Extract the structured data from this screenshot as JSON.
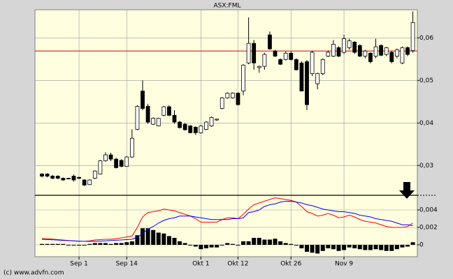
{
  "footer": "(c) www.advfn.com",
  "chart_data": [
    {
      "type": "candlestick",
      "title": "ASX:FML",
      "categories": [
        null,
        null,
        null,
        null,
        null,
        null,
        null,
        "Sep 1",
        null,
        null,
        null,
        null,
        null,
        null,
        null,
        null,
        "Sep 14",
        null,
        null,
        null,
        null,
        null,
        null,
        null,
        null,
        null,
        null,
        null,
        null,
        null,
        "Okt 1",
        null,
        null,
        null,
        null,
        null,
        null,
        "Okt 12",
        null,
        null,
        null,
        null,
        null,
        null,
        null,
        null,
        null,
        "Okt 26",
        null,
        null,
        null,
        null,
        null,
        null,
        null,
        null,
        null,
        "Nov 9",
        null,
        null,
        null,
        null,
        null,
        null,
        null,
        null,
        null,
        null,
        null,
        null,
        null
      ],
      "open": [
        0.028,
        0.028,
        0.0275,
        0.0275,
        0.027,
        0.027,
        0.0275,
        0.0272,
        0.0266,
        0.0255,
        0.027,
        0.028,
        0.0311,
        0.0325,
        0.0315,
        0.0312,
        0.0298,
        0.032,
        0.0385,
        0.0475,
        0.0439,
        0.0397,
        0.0393,
        0.0418,
        0.0438,
        0.0418,
        0.0402,
        0.0397,
        0.0393,
        0.039,
        0.0377,
        0.0385,
        0.0393,
        0.0407,
        0.0434,
        0.0459,
        0.0459,
        0.047,
        0.0475,
        0.0541,
        0.0587,
        0.053,
        0.0533,
        0.0607,
        0.0569,
        0.0549,
        0.0549,
        0.0564,
        0.0549,
        0.0541,
        0.0544,
        0.0516,
        0.0492,
        0.0516,
        0.0557,
        0.0557,
        0.0577,
        0.0566,
        0.0577,
        0.059,
        0.0582,
        0.0557,
        0.0564,
        0.0557,
        0.0582,
        0.0561,
        0.0566,
        0.0557,
        0.0541,
        0.0577,
        0.057
      ],
      "high": [
        0.0282,
        0.0282,
        0.0278,
        0.0277,
        0.0272,
        0.0271,
        0.0279,
        0.0274,
        0.0268,
        0.0268,
        0.0289,
        0.0313,
        0.0331,
        0.033,
        0.0318,
        0.0315,
        0.0322,
        0.0385,
        0.0442,
        0.05,
        0.0445,
        0.0413,
        0.0412,
        0.044,
        0.0442,
        0.043,
        0.0405,
        0.04,
        0.0395,
        0.0392,
        0.0395,
        0.0404,
        0.0415,
        0.041,
        0.0461,
        0.0472,
        0.0472,
        0.0472,
        0.0538,
        0.0648,
        0.0595,
        0.0535,
        0.0565,
        0.0615,
        0.0572,
        0.0552,
        0.0568,
        0.0568,
        0.0552,
        0.0545,
        0.0548,
        0.057,
        0.0518,
        0.0552,
        0.057,
        0.0595,
        0.058,
        0.0607,
        0.0598,
        0.0592,
        0.0585,
        0.0572,
        0.0566,
        0.0598,
        0.0585,
        0.0579,
        0.0569,
        0.0575,
        0.058,
        0.058,
        0.0662
      ],
      "low": [
        0.0272,
        0.0272,
        0.0268,
        0.0268,
        0.0264,
        0.0268,
        0.0262,
        0.0268,
        0.0252,
        0.0254,
        0.0268,
        0.0279,
        0.0309,
        0.031,
        0.0293,
        0.0296,
        0.0297,
        0.0318,
        0.0383,
        0.043,
        0.0398,
        0.0395,
        0.0392,
        0.0416,
        0.0416,
        0.0398,
        0.0387,
        0.0382,
        0.0376,
        0.0372,
        0.0375,
        0.0383,
        0.0391,
        0.0405,
        0.0432,
        0.0457,
        0.0457,
        0.0441,
        0.0465,
        0.0538,
        0.0525,
        0.0518,
        0.0525,
        0.0572,
        0.0555,
        0.0536,
        0.0547,
        0.0547,
        0.0523,
        0.0475,
        0.043,
        0.051,
        0.0479,
        0.0512,
        0.0555,
        0.0555,
        0.0555,
        0.0562,
        0.0572,
        0.0562,
        0.0555,
        0.0552,
        0.054,
        0.0552,
        0.0557,
        0.0557,
        0.054,
        0.0552,
        0.0538,
        0.0557,
        0.0565
      ],
      "close": [
        0.0275,
        0.0275,
        0.027,
        0.027,
        0.0266,
        0.0269,
        0.0266,
        0.027,
        0.0254,
        0.0266,
        0.0287,
        0.0311,
        0.0325,
        0.0315,
        0.0295,
        0.0298,
        0.032,
        0.0364,
        0.0439,
        0.0434,
        0.0402,
        0.0411,
        0.0411,
        0.0438,
        0.0418,
        0.0402,
        0.0389,
        0.0384,
        0.0377,
        0.0377,
        0.0393,
        0.0402,
        0.0413,
        0.0409,
        0.0459,
        0.047,
        0.047,
        0.0443,
        0.0536,
        0.0587,
        0.0541,
        0.0533,
        0.0561,
        0.0574,
        0.0557,
        0.0538,
        0.0564,
        0.0549,
        0.0525,
        0.0475,
        0.0443,
        0.0566,
        0.0516,
        0.0549,
        0.0566,
        0.0585,
        0.0557,
        0.0598,
        0.0593,
        0.0566,
        0.0557,
        0.0569,
        0.0544,
        0.0579,
        0.0559,
        0.0577,
        0.0544,
        0.0572,
        0.0577,
        0.0561,
        0.0636
      ],
      "color": "#000000",
      "reference_line": {
        "value": 0.0569,
        "color": "#cc0000"
      },
      "ylim": [
        0.023,
        0.0666
      ],
      "yticks": [
        {
          "value": 0.03,
          "label": "0,03"
        },
        {
          "value": 0.04,
          "label": "0,04"
        },
        {
          "value": 0.05,
          "label": "0,05"
        },
        {
          "value": 0.06,
          "label": "0,06"
        }
      ],
      "grid": true
    },
    {
      "type": "macd",
      "lines": [
        {
          "color": "#ff0000",
          "values": [
            0.00072,
            0.0007,
            0.00065,
            0.0006,
            0.00055,
            0.0005,
            0.00045,
            0.0004,
            0.0004,
            0.00045,
            0.00056,
            0.0006,
            0.00064,
            0.00064,
            0.0007,
            0.0008,
            0.0009,
            0.001,
            0.002,
            0.0032,
            0.0037,
            0.0038,
            0.0039,
            0.0041,
            0.004,
            0.0039,
            0.0037,
            0.0035,
            0.0033,
            0.003,
            0.0026,
            0.0026,
            0.0026,
            0.0026,
            0.0029,
            0.0031,
            0.0031,
            0.003,
            0.0035,
            0.0041,
            0.0046,
            0.0048,
            0.005,
            0.0052,
            0.0054,
            0.0053,
            0.0052,
            0.0051,
            0.0049,
            0.0044,
            0.0038,
            0.0036,
            0.0033,
            0.0034,
            0.0036,
            0.0034,
            0.0031,
            0.0032,
            0.0034,
            0.0032,
            0.0029,
            0.0027,
            0.0026,
            0.0025,
            0.0023,
            0.0021,
            0.002,
            0.002,
            0.002,
            0.0021,
            0.0025
          ]
        },
        {
          "color": "#0000ff",
          "values": [
            0.00064,
            0.0006,
            0.00058,
            0.00055,
            0.0005,
            0.00048,
            0.00045,
            0.00042,
            0.0004,
            0.0004,
            0.0004,
            0.00042,
            0.00045,
            0.0005,
            0.00053,
            0.00056,
            0.0006,
            0.00064,
            0.0009,
            0.0013,
            0.0018,
            0.0021,
            0.0025,
            0.0028,
            0.003,
            0.0031,
            0.0033,
            0.0033,
            0.0033,
            0.0032,
            0.0031,
            0.003,
            0.0029,
            0.0029,
            0.0029,
            0.0029,
            0.003,
            0.003,
            0.0031,
            0.0037,
            0.0038,
            0.004,
            0.0044,
            0.0046,
            0.0047,
            0.0049,
            0.005,
            0.005,
            0.0049,
            0.0048,
            0.0046,
            0.0045,
            0.0043,
            0.0041,
            0.004,
            0.0039,
            0.0038,
            0.0038,
            0.0037,
            0.0036,
            0.0034,
            0.0033,
            0.0032,
            0.003,
            0.0029,
            0.0028,
            0.0027,
            0.0025,
            0.0023,
            0.0023,
            0.0022
          ]
        }
      ],
      "histogram": {
        "color": "#000000",
        "values": [
          0.0001,
          0.0001,
          0.0001,
          0.0001,
          0.0001,
          0,
          0,
          0,
          0,
          0.0001,
          0.0002,
          0.0002,
          0.0002,
          0.0001,
          0.0002,
          0.0002,
          0.0003,
          0.0004,
          0.0011,
          0.0019,
          0.0019,
          0.0017,
          0.0014,
          0.0013,
          0.001,
          0.0008,
          0.0004,
          0.0002,
          0,
          -0.0002,
          -0.0005,
          -0.0004,
          -0.0003,
          -0.0003,
          0,
          0.0002,
          0.0001,
          0,
          0.0004,
          0.0004,
          0.0008,
          0.0008,
          0.0006,
          0.0006,
          0.0007,
          0.0004,
          0.0002,
          0.0001,
          0,
          -0.0004,
          -0.0008,
          -0.0009,
          -0.001,
          -0.0007,
          -0.0004,
          -0.0005,
          -0.0007,
          -0.0006,
          -0.0003,
          -0.0004,
          -0.0005,
          -0.0006,
          -0.0006,
          -0.0005,
          -0.0006,
          -0.0007,
          -0.0007,
          -0.0005,
          -0.0003,
          -0.0002,
          0.0003
        ]
      },
      "ylim": [
        -0.00136,
        0.00568
      ],
      "yticks": [
        0,
        {
          "value": 0.002,
          "label": "0,002"
        },
        {
          "value": 0.004,
          "label": "0,004"
        }
      ],
      "grid": true
    }
  ]
}
